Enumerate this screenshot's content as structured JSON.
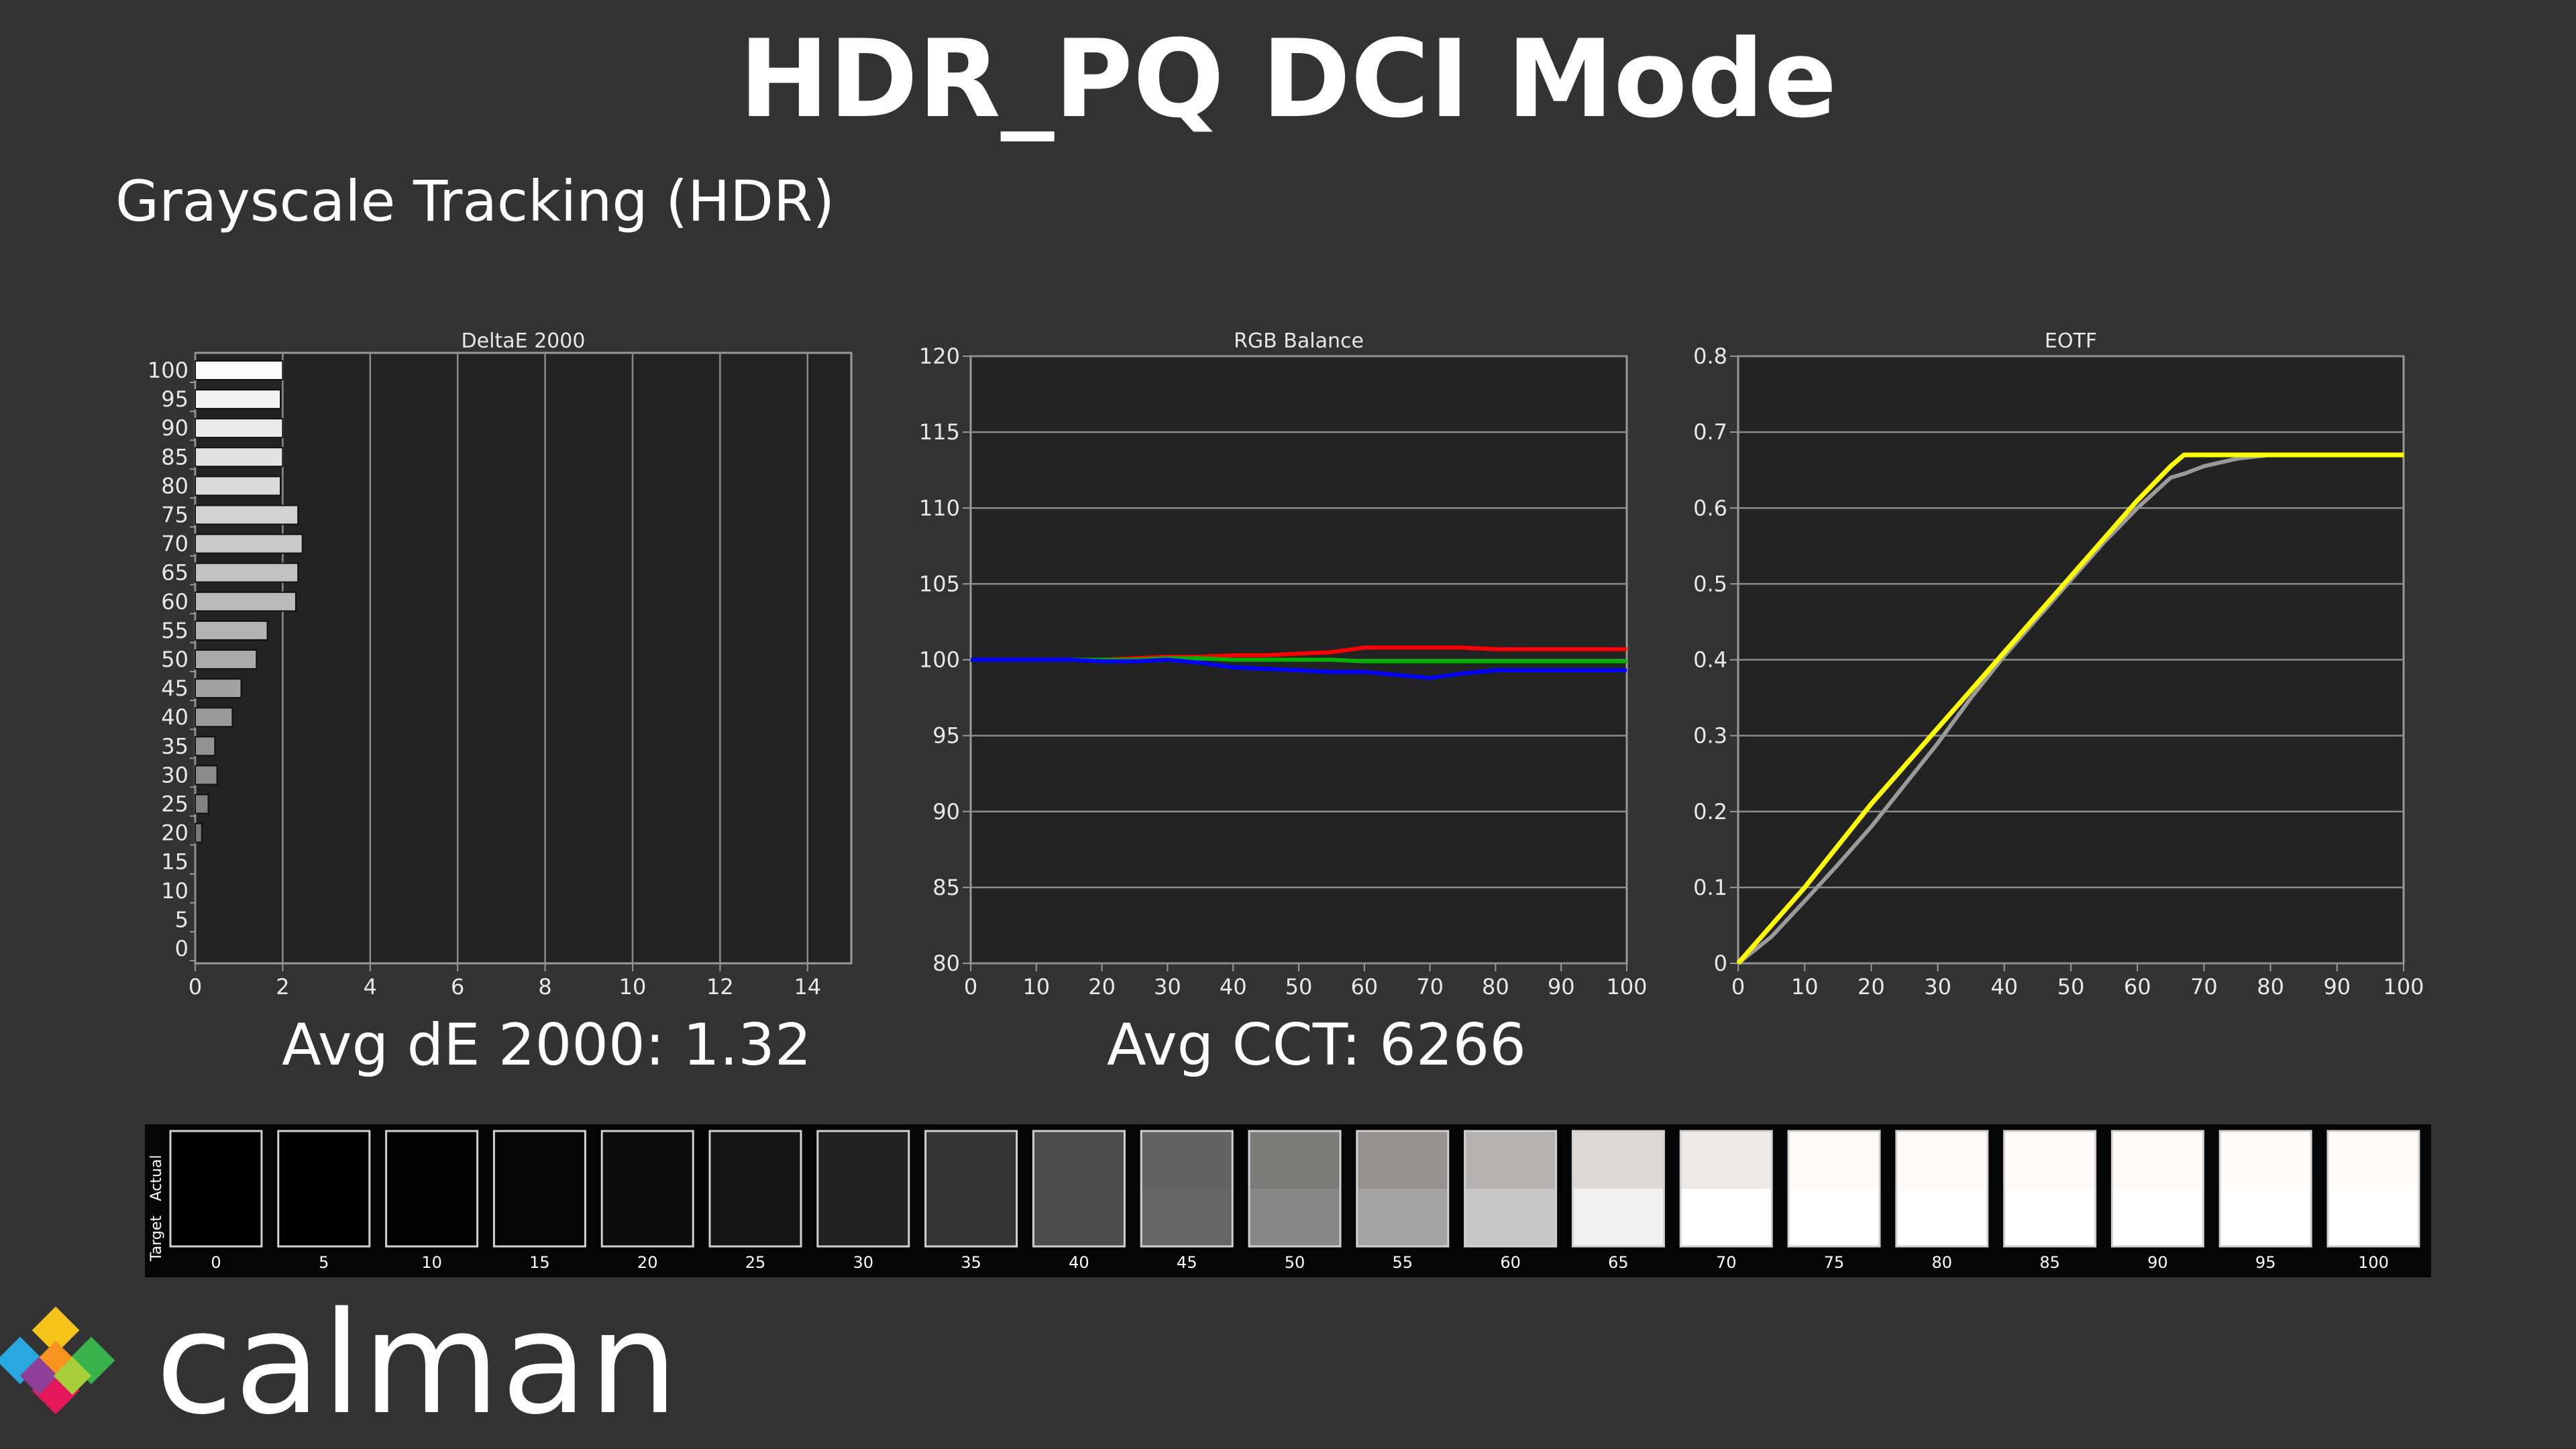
{
  "title": "HDR_PQ DCI Mode",
  "subtitle": "Grayscale Tracking (HDR)",
  "avg_de": "Avg dE 2000: 1.32",
  "avg_cct": "Avg CCT: 6266",
  "logo_text": "calman",
  "swatch_labels": {
    "actual": "Actual",
    "target": "Target"
  },
  "colors": {
    "background": "#333333",
    "plot_bg": "#232323",
    "red": "#ff0000",
    "green": "#00b000",
    "blue": "#0000ff",
    "eotf_target": "#9a9a9a",
    "eotf_actual": "#ffff00"
  },
  "swatches": {
    "levels": [
      "0",
      "5",
      "10",
      "15",
      "20",
      "25",
      "30",
      "35",
      "40",
      "45",
      "50",
      "55",
      "60",
      "65",
      "70",
      "75",
      "80",
      "85",
      "90",
      "95",
      "100"
    ],
    "actual": [
      "#000000",
      "#010101",
      "#030303",
      "#060606",
      "#0d0d0d",
      "#151515",
      "#222222",
      "#343434",
      "#4c4c4c",
      "#626262",
      "#7a7a78",
      "#959290",
      "#b5b2b2",
      "#dbd8d6",
      "#ede9e7",
      "#fff9f7",
      "#fffaf8",
      "#fffaf8",
      "#fffaf8",
      "#fffbf9",
      "#fffbf9"
    ],
    "target": [
      "#000000",
      "#010101",
      "#030303",
      "#060606",
      "#0d0d0d",
      "#151515",
      "#222222",
      "#353535",
      "#4d4d4d",
      "#666666",
      "#878787",
      "#a3a3a3",
      "#c6c6c6",
      "#f1f1f1",
      "#ffffff",
      "#ffffff",
      "#ffffff",
      "#ffffff",
      "#ffffff",
      "#ffffff",
      "#ffffff"
    ]
  },
  "chart_data": [
    {
      "type": "bar",
      "orientation": "horizontal",
      "title": "DeltaE 2000",
      "categories": [
        "0",
        "5",
        "10",
        "15",
        "20",
        "25",
        "30",
        "35",
        "40",
        "45",
        "50",
        "55",
        "60",
        "65",
        "70",
        "75",
        "80",
        "85",
        "90",
        "95",
        "100"
      ],
      "values": [
        0,
        0,
        0,
        0,
        0.15,
        0.3,
        0.5,
        0.45,
        0.85,
        1.05,
        1.4,
        1.65,
        2.3,
        2.35,
        2.45,
        2.35,
        1.95,
        2.0,
        2.0,
        1.95,
        2.0
      ],
      "xlim": [
        0,
        15
      ],
      "xticks": [
        "0",
        "2",
        "4",
        "6",
        "8",
        "10",
        "12",
        "14"
      ],
      "grid": true
    },
    {
      "type": "line",
      "title": "RGB Balance",
      "x": [
        0,
        5,
        10,
        15,
        20,
        25,
        30,
        35,
        40,
        45,
        50,
        55,
        60,
        65,
        70,
        75,
        80,
        85,
        90,
        95,
        100
      ],
      "series": [
        {
          "color": "red",
          "values": [
            100,
            100,
            100,
            100,
            100,
            100.1,
            100.2,
            100.2,
            100.3,
            100.3,
            100.4,
            100.5,
            100.8,
            100.8,
            100.8,
            100.8,
            100.7,
            100.7,
            100.7,
            100.7,
            100.7
          ]
        },
        {
          "color": "green",
          "values": [
            100,
            100,
            100,
            100,
            100,
            100,
            100.1,
            100.1,
            100,
            100,
            100,
            100,
            99.9,
            99.9,
            99.9,
            99.9,
            99.9,
            99.9,
            99.9,
            99.9,
            99.9
          ]
        },
        {
          "color": "blue",
          "values": [
            100,
            100,
            100,
            100,
            99.9,
            99.9,
            100,
            99.8,
            99.5,
            99.4,
            99.3,
            99.2,
            99.2,
            99,
            98.8,
            99.1,
            99.3,
            99.3,
            99.3,
            99.3,
            99.3
          ]
        }
      ],
      "ylim": [
        80,
        120
      ],
      "yticks": [
        "80",
        "85",
        "90",
        "95",
        "100",
        "105",
        "110",
        "115",
        "120"
      ],
      "xticks": [
        "0",
        "10",
        "20",
        "30",
        "40",
        "50",
        "60",
        "70",
        "80",
        "90",
        "100"
      ],
      "grid": true
    },
    {
      "type": "line",
      "title": "EOTF",
      "x": [
        0,
        5,
        10,
        15,
        20,
        25,
        30,
        35,
        40,
        45,
        50,
        55,
        60,
        65,
        67,
        70,
        75,
        80,
        85,
        90,
        95,
        100
      ],
      "series": [
        {
          "color": "gray",
          "values": [
            0,
            0.035,
            0.082,
            0.13,
            0.18,
            0.235,
            0.29,
            0.35,
            0.405,
            0.455,
            0.505,
            0.555,
            0.6,
            0.64,
            0.645,
            0.655,
            0.665,
            0.67,
            0.67,
            0.67,
            0.67,
            0.67
          ]
        },
        {
          "color": "yellow",
          "values": [
            0,
            0.05,
            0.1,
            0.155,
            0.21,
            0.26,
            0.31,
            0.36,
            0.41,
            0.46,
            0.51,
            0.56,
            0.61,
            0.655,
            0.67,
            0.67,
            0.67,
            0.67,
            0.67,
            0.67,
            0.67,
            0.67
          ]
        }
      ],
      "ylim": [
        0,
        0.8
      ],
      "yticks": [
        "0",
        "0.1",
        "0.2",
        "0.3",
        "0.4",
        "0.5",
        "0.6",
        "0.7",
        "0.8"
      ],
      "xticks": [
        "0",
        "10",
        "20",
        "30",
        "40",
        "50",
        "60",
        "70",
        "80",
        "90",
        "100"
      ],
      "grid": true
    }
  ]
}
